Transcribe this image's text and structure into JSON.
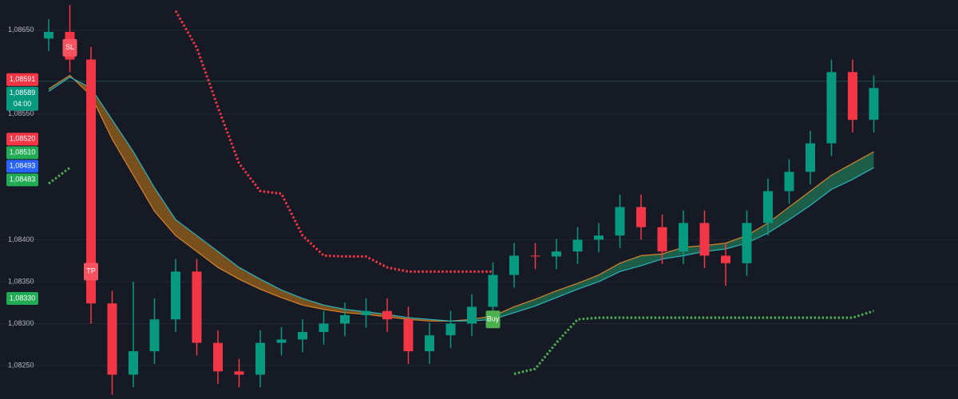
{
  "chart_data": {
    "type": "candlestick",
    "up_color": "#089981",
    "down_color": "#f23645",
    "ylim": [
      1.0821,
      1.08686
    ],
    "yticks": [
      {
        "value": 1.0865,
        "label": "1,08650"
      },
      {
        "value": 1.0855,
        "label": "1,08550"
      },
      {
        "value": 1.084,
        "label": "1,08400"
      },
      {
        "value": 1.0835,
        "label": "1,08350"
      },
      {
        "value": 1.083,
        "label": "1,08300"
      },
      {
        "value": 1.0825,
        "label": "1,08250"
      }
    ],
    "grid": true,
    "open": [
      1.0864,
      1.08648,
      1.08615,
      1.08324,
      1.08239,
      1.08267,
      1.08305,
      1.08362,
      1.08277,
      1.08243,
      1.08239,
      1.08277,
      1.08281,
      1.0829,
      1.083,
      1.0831,
      1.08315,
      1.08305,
      1.08267,
      1.08286,
      1.083,
      1.0832,
      1.08358,
      1.08381,
      1.0838,
      1.08386,
      1.084,
      1.08405,
      1.08439,
      1.08415,
      1.08386,
      1.0842,
      1.08381,
      1.08372,
      1.0842,
      1.08458,
      1.08481,
      1.08515,
      1.086,
      1.08543
    ],
    "high": [
      1.08663,
      1.0868,
      1.0863,
      1.08339,
      1.0835,
      1.0833,
      1.08377,
      1.08377,
      1.08292,
      1.08258,
      1.08292,
      1.08296,
      1.08305,
      1.08315,
      1.08325,
      1.0833,
      1.0833,
      1.0832,
      1.08301,
      1.08315,
      1.08335,
      1.08373,
      1.08396,
      1.08396,
      1.08401,
      1.08415,
      1.0842,
      1.08454,
      1.08454,
      1.0843,
      1.08435,
      1.08435,
      1.08396,
      1.08435,
      1.08473,
      1.08496,
      1.0853,
      1.08615,
      1.08615,
      1.08596
    ],
    "low": [
      1.08625,
      1.086,
      1.083,
      1.08215,
      1.08224,
      1.08252,
      1.0829,
      1.08262,
      1.08228,
      1.08224,
      1.08224,
      1.08262,
      1.08266,
      1.08275,
      1.08285,
      1.08295,
      1.0829,
      1.08252,
      1.08252,
      1.08271,
      1.08285,
      1.08305,
      1.08343,
      1.08365,
      1.08365,
      1.08371,
      1.08385,
      1.0839,
      1.084,
      1.08371,
      1.08371,
      1.08366,
      1.08345,
      1.08357,
      1.08405,
      1.08443,
      1.08466,
      1.085,
      1.08528,
      1.08528
    ],
    "close": [
      1.08648,
      1.08615,
      1.08324,
      1.08239,
      1.08267,
      1.08305,
      1.08362,
      1.08277,
      1.08243,
      1.08239,
      1.08277,
      1.08281,
      1.0829,
      1.083,
      1.0831,
      1.08315,
      1.08305,
      1.08267,
      1.08286,
      1.083,
      1.0832,
      1.08358,
      1.08381,
      1.0838,
      1.08386,
      1.084,
      1.08405,
      1.08439,
      1.08415,
      1.08386,
      1.0842,
      1.08381,
      1.08372,
      1.0842,
      1.08458,
      1.08481,
      1.08515,
      1.086,
      1.08543,
      1.08581
    ],
    "cloud": {
      "up_color": "#1e6b4f",
      "down_color": "#8a5a1c",
      "fast": [
        1.0858,
        1.08596,
        1.08572,
        1.0852,
        1.08477,
        1.08434,
        1.08405,
        1.08386,
        1.08367,
        1.08353,
        1.08341,
        1.08331,
        1.08322,
        1.08317,
        1.08313,
        1.08311,
        1.08308,
        1.08305,
        1.08303,
        1.08303,
        1.08305,
        1.08309,
        1.0832,
        1.08329,
        1.08339,
        1.08348,
        1.08358,
        1.08372,
        1.08381,
        1.08383,
        1.08391,
        1.08393,
        1.08396,
        1.08405,
        1.0842,
        1.08439,
        1.08458,
        1.08477,
        1.08491,
        1.08505
      ],
      "slow": [
        1.08577,
        1.08594,
        1.08581,
        1.08543,
        1.08505,
        1.08462,
        1.08424,
        1.08405,
        1.08386,
        1.08367,
        1.08353,
        1.0834,
        1.0833,
        1.08322,
        1.08317,
        1.08314,
        1.08311,
        1.08307,
        1.08305,
        1.08303,
        1.08303,
        1.08305,
        1.08313,
        1.08321,
        1.08331,
        1.08341,
        1.0835,
        1.08362,
        1.08369,
        1.08377,
        1.08381,
        1.08386,
        1.08389,
        1.08396,
        1.08408,
        1.08424,
        1.08441,
        1.0846,
        1.08472,
        1.08486
      ]
    },
    "overlays": [
      {
        "color": "#f23645",
        "values": [
          null,
          null,
          null,
          null,
          null,
          null,
          1.08673,
          1.08629,
          1.08558,
          1.08491,
          1.08458,
          1.08455,
          1.08405,
          1.08381,
          1.0838,
          1.0838,
          1.08367,
          1.08362,
          1.08362,
          1.08362,
          1.08362,
          1.08362,
          null,
          null,
          null,
          null,
          null,
          null,
          null,
          null,
          null,
          null,
          null,
          null,
          null,
          null,
          null,
          null,
          null,
          null
        ]
      },
      {
        "color": "#4caf50",
        "values": [
          1.08467,
          1.08486,
          null,
          null,
          null,
          null,
          null,
          null,
          null,
          null,
          null,
          null,
          null,
          null,
          null,
          null,
          null,
          null,
          null,
          null,
          null,
          null,
          1.0824,
          1.08246,
          1.08277,
          1.08305,
          1.08307,
          1.08307,
          1.08307,
          1.08307,
          1.08307,
          1.08307,
          1.08307,
          1.08307,
          1.08307,
          1.08307,
          1.08307,
          1.08307,
          1.08307,
          1.08315
        ]
      }
    ],
    "markers": [
      {
        "label": "SL",
        "candle": 1,
        "price": 1.08629,
        "color": "#f7525f"
      },
      {
        "label": "TP",
        "candle": 2,
        "price": 1.08362,
        "color": "#f7525f"
      },
      {
        "label": "Buy",
        "candle": 21,
        "price": 1.08305,
        "color": "#4caf50"
      }
    ],
    "price_tags": [
      {
        "value": 1.08591,
        "label": "1,08591",
        "color": "#f23645"
      },
      {
        "value": 1.08589,
        "label": "1,08589",
        "color": "#089981",
        "countdown": "04:00",
        "price_line": true
      },
      {
        "value": 1.0852,
        "label": "1,08520",
        "color": "#f23645"
      },
      {
        "value": 1.0851,
        "label": "1,08510",
        "color": "#22ab55"
      },
      {
        "value": 1.08493,
        "label": "1,08493",
        "color": "#2962ff"
      },
      {
        "value": 1.08483,
        "label": "1,08483",
        "color": "#22ab55"
      },
      {
        "value": 1.0833,
        "label": "1,08330",
        "color": "#22ab55"
      }
    ]
  }
}
